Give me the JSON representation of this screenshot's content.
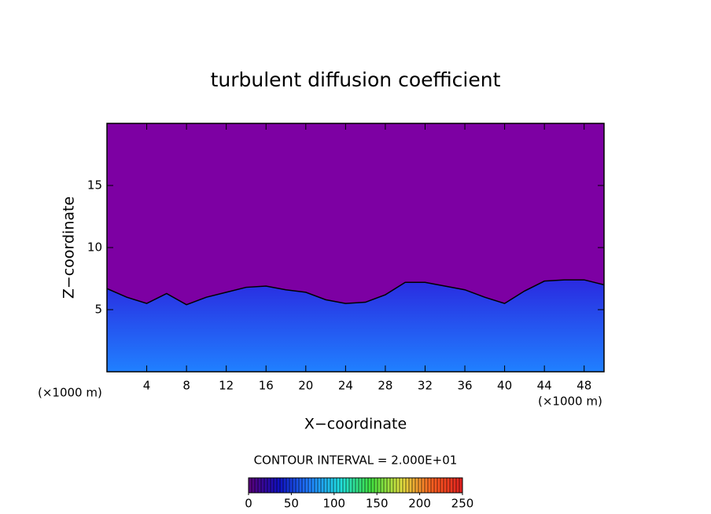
{
  "chart_data": {
    "type": "contour",
    "title": "turbulent diffusion coefficient",
    "x_label": "X−coordinate",
    "y_label": "Z−coordinate",
    "x_unit": "(×1000 m)",
    "y_unit": "(×1000 m)",
    "contour_interval": "CONTOUR INTERVAL = 2.000E+01",
    "xlim": [
      0,
      50
    ],
    "ylim": [
      0,
      20
    ],
    "xticks": [
      4,
      8,
      12,
      16,
      20,
      24,
      28,
      32,
      36,
      40,
      44,
      48
    ],
    "yticks": [
      5,
      10,
      15
    ],
    "background_color": "#7d00a3",
    "layer_color": "#2a2ae0",
    "layer_top": {
      "x": [
        0,
        2,
        4,
        6,
        8,
        10,
        12,
        14,
        16,
        18,
        20,
        22,
        24,
        26,
        28,
        30,
        32,
        34,
        36,
        38,
        40,
        42,
        44,
        46,
        48,
        50
      ],
      "values": [
        6.7,
        6.0,
        5.5,
        6.3,
        5.4,
        6.0,
        6.4,
        6.8,
        6.9,
        6.6,
        6.4,
        5.8,
        5.5,
        5.6,
        6.2,
        7.2,
        7.2,
        6.9,
        6.6,
        6.0,
        5.5,
        6.5,
        7.3,
        7.4,
        7.4,
        7.0
      ]
    },
    "colorbar": {
      "lim": [
        0,
        250
      ],
      "ticks": [
        0,
        50,
        100,
        150,
        200,
        250
      ],
      "colors": [
        "#5a0078",
        "#1010c0",
        "#2080ff",
        "#20e0e0",
        "#40e040",
        "#e0e040",
        "#ff6020",
        "#e02020"
      ]
    }
  }
}
